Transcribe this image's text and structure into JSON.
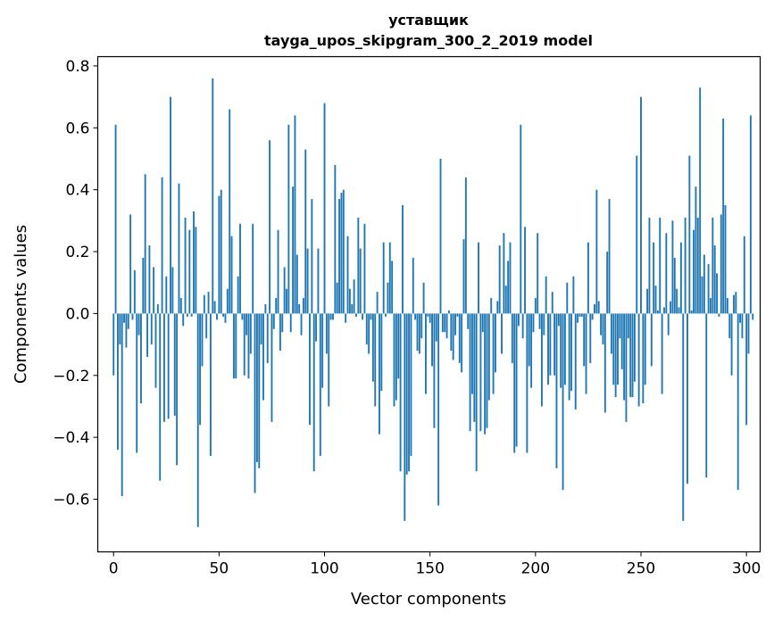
{
  "chart_data": {
    "type": "bar",
    "title": "уставщик",
    "subtitle": "tayga_upos_skipgram_300_2_2019 model",
    "xlabel": "Vector components",
    "ylabel": "Components values",
    "xlim": [
      -7.5,
      306.5
    ],
    "ylim": [
      -0.77,
      0.83
    ],
    "xticks": [
      0,
      50,
      100,
      150,
      200,
      250,
      300
    ],
    "xtick_labels": [
      "0",
      "50",
      "100",
      "150",
      "200",
      "250",
      "300"
    ],
    "yticks": [
      -0.6,
      -0.4,
      -0.2,
      0.0,
      0.2,
      0.4,
      0.6,
      0.8
    ],
    "ytick_labels": [
      "−0.6",
      "−0.4",
      "−0.2",
      "0.0",
      "0.2",
      "0.4",
      "0.6",
      "0.8"
    ],
    "bar_color": "#1f77b4",
    "grid": false,
    "values": [
      -0.2,
      0.61,
      -0.44,
      -0.1,
      -0.59,
      -0.03,
      -0.11,
      -0.05,
      0.32,
      -0.02,
      0.14,
      -0.45,
      -0.07,
      -0.29,
      0.18,
      0.45,
      -0.14,
      0.22,
      -0.1,
      0.15,
      -0.24,
      0.03,
      -0.54,
      0.44,
      -0.35,
      0.12,
      -0.34,
      0.7,
      0.15,
      -0.33,
      -0.49,
      0.42,
      0.05,
      -0.04,
      0.31,
      -0.01,
      0.27,
      -0.01,
      0.33,
      0.28,
      -0.69,
      -0.36,
      -0.17,
      0.06,
      -0.08,
      0.07,
      -0.46,
      0.76,
      0.04,
      -0.02,
      0.38,
      0.4,
      -0.01,
      -0.03,
      0.08,
      0.66,
      0.25,
      -0.21,
      -0.21,
      0.12,
      0.29,
      -0.02,
      -0.2,
      -0.07,
      -0.21,
      -0.13,
      0.29,
      -0.58,
      -0.48,
      -0.5,
      -0.1,
      -0.28,
      0.03,
      -0.16,
      0.56,
      -0.35,
      -0.05,
      0.05,
      0.27,
      -0.12,
      -0.06,
      0.15,
      0.08,
      0.61,
      -0.06,
      0.41,
      0.64,
      0.19,
      0.03,
      -0.07,
      0.05,
      0.53,
      0.21,
      -0.36,
      0.37,
      -0.51,
      -0.09,
      0.21,
      -0.46,
      -0.24,
      0.68,
      -0.13,
      -0.3,
      -0.02,
      -0.02,
      0.48,
      0.1,
      0.37,
      0.39,
      0.4,
      -0.03,
      0.25,
      0.08,
      0.03,
      0.11,
      -0.01,
      0.31,
      0.21,
      -0.02,
      0.29,
      -0.1,
      -0.13,
      -0.02,
      -0.22,
      -0.3,
      0.07,
      -0.39,
      -0.25,
      0.23,
      -0.01,
      0.1,
      0.23,
      0.17,
      -0.3,
      -0.28,
      -0.21,
      -0.51,
      0.35,
      -0.67,
      -0.52,
      -0.51,
      -0.46,
      0.18,
      -0.02,
      -0.12,
      -0.13,
      -0.08,
      0.1,
      -0.26,
      -0.01,
      -0.03,
      -0.17,
      -0.37,
      -0.09,
      -0.62,
      0.5,
      -0.06,
      -0.06,
      -0.08,
      0.01,
      -0.12,
      -0.15,
      -0.07,
      -0.01,
      -0.16,
      -0.19,
      0.24,
      0.44,
      -0.05,
      -0.38,
      -0.26,
      -0.35,
      -0.51,
      0.23,
      -0.38,
      -0.06,
      -0.39,
      -0.37,
      -0.28,
      0.05,
      -0.26,
      -0.19,
      0.04,
      0.22,
      -0.13,
      0.26,
      0.09,
      0.17,
      0.23,
      -0.16,
      -0.45,
      -0.43,
      -0.04,
      0.61,
      -0.08,
      0.28,
      -0.45,
      -0.17,
      -0.24,
      -0.06,
      0.05,
      0.26,
      -0.05,
      -0.3,
      -0.07,
      0.12,
      -0.23,
      -0.2,
      0.07,
      -0.2,
      -0.5,
      -0.04,
      -0.24,
      -0.57,
      -0.23,
      0.1,
      -0.28,
      -0.25,
      0.12,
      -0.31,
      -0.03,
      -0.01,
      -0.01,
      -0.17,
      -0.26,
      0.23,
      -0.16,
      -0.02,
      0.03,
      0.4,
      0.04,
      -0.07,
      -0.1,
      -0.32,
      0.2,
      0.37,
      -0.13,
      -0.23,
      -0.27,
      -0.23,
      -0.08,
      -0.18,
      -0.28,
      -0.35,
      -0.08,
      -0.27,
      -0.27,
      -0.22,
      0.51,
      -0.3,
      0.7,
      -0.29,
      -0.23,
      0.08,
      0.31,
      -0.17,
      0.23,
      0.09,
      0.01,
      0.31,
      -0.26,
      0.02,
      0.26,
      -0.07,
      0.04,
      0.3,
      0.18,
      0.08,
      0.02,
      0.23,
      -0.67,
      0.31,
      -0.55,
      0.51,
      0.01,
      0.27,
      0.41,
      0.31,
      0.73,
      0.12,
      0.19,
      -0.53,
      0.16,
      0.05,
      0.31,
      0.22,
      0.13,
      -0.01,
      0.32,
      0.63,
      0.35,
      0.05,
      -0.08,
      -0.2,
      0.06,
      0.07,
      -0.57,
      -0.03,
      -0.08,
      0.25,
      -0.36,
      -0.13,
      0.64,
      -0.02
    ]
  }
}
